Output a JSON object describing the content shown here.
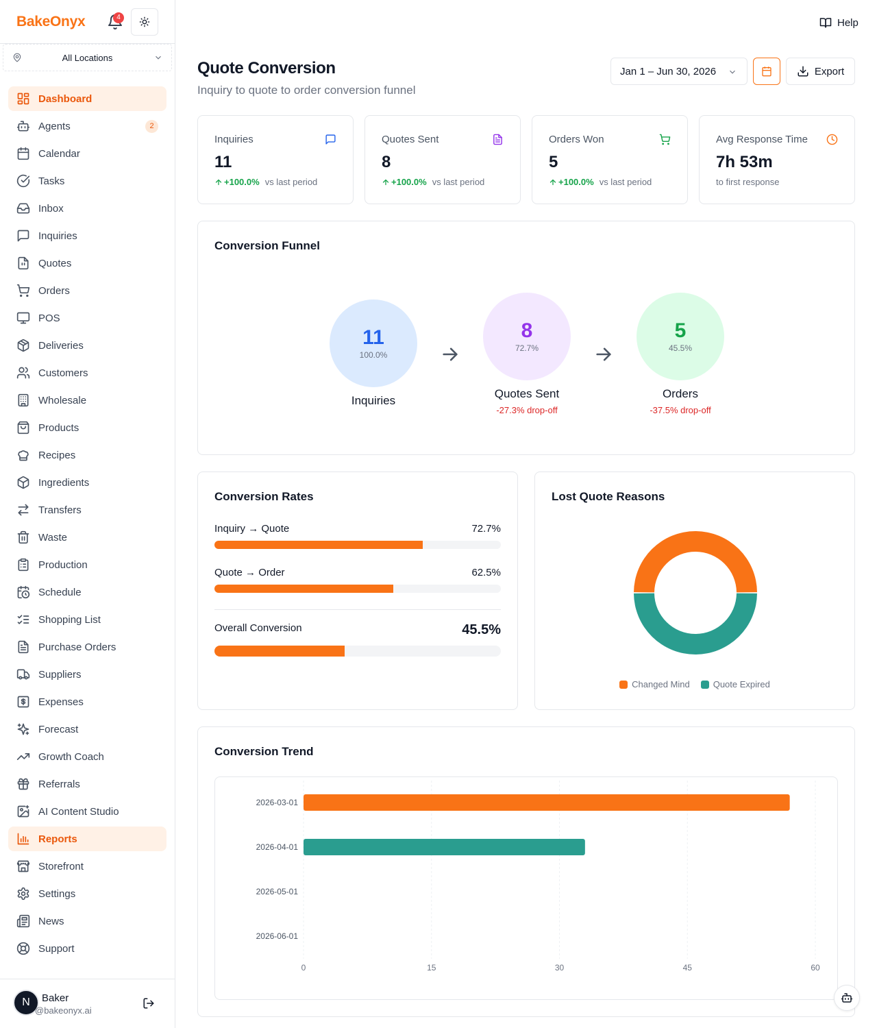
{
  "brand": {
    "name": "BakeOnyx",
    "notifications": "4"
  },
  "location": {
    "label": "All Locations"
  },
  "nav": [
    {
      "label": "Dashboard",
      "icon": "dashboard-icon",
      "active": true
    },
    {
      "label": "Agents",
      "icon": "bot-icon",
      "badge": "2"
    },
    {
      "label": "Calendar",
      "icon": "calendar-icon"
    },
    {
      "label": "Tasks",
      "icon": "check-circle-icon"
    },
    {
      "label": "Inbox",
      "icon": "inbox-icon"
    },
    {
      "label": "Inquiries",
      "icon": "chat-icon"
    },
    {
      "label": "Quotes",
      "icon": "file-quote-icon"
    },
    {
      "label": "Orders",
      "icon": "cart-icon"
    },
    {
      "label": "POS",
      "icon": "monitor-icon"
    },
    {
      "label": "Deliveries",
      "icon": "package-icon"
    },
    {
      "label": "Customers",
      "icon": "users-icon"
    },
    {
      "label": "Wholesale",
      "icon": "building-icon"
    },
    {
      "label": "Products",
      "icon": "shopping-bag-icon"
    },
    {
      "label": "Recipes",
      "icon": "chef-hat-icon"
    },
    {
      "label": "Ingredients",
      "icon": "box-icon"
    },
    {
      "label": "Transfers",
      "icon": "transfer-icon"
    },
    {
      "label": "Waste",
      "icon": "trash-icon"
    },
    {
      "label": "Production",
      "icon": "clipboard-icon"
    },
    {
      "label": "Schedule",
      "icon": "calendar-clock-icon"
    },
    {
      "label": "Shopping List",
      "icon": "list-checks-icon"
    },
    {
      "label": "Purchase Orders",
      "icon": "file-text-icon"
    },
    {
      "label": "Suppliers",
      "icon": "truck-icon"
    },
    {
      "label": "Expenses",
      "icon": "dollar-icon"
    },
    {
      "label": "Forecast",
      "icon": "sparkles-icon"
    },
    {
      "label": "Growth Coach",
      "icon": "trending-up-icon"
    },
    {
      "label": "Referrals",
      "icon": "gift-icon"
    },
    {
      "label": "AI Content Studio",
      "icon": "image-sparkle-icon"
    },
    {
      "label": "Reports",
      "icon": "bar-chart-icon",
      "active": true
    },
    {
      "label": "Storefront",
      "icon": "store-icon"
    },
    {
      "label": "Settings",
      "icon": "gear-icon"
    },
    {
      "label": "News",
      "icon": "newspaper-icon"
    },
    {
      "label": "Support",
      "icon": "life-buoy-icon"
    }
  ],
  "user": {
    "initial": "N",
    "name": "Baker",
    "email": "@bakeonyx.ai"
  },
  "header": {
    "help": "Help",
    "title": "Quote Conversion",
    "subtitle": "Inquiry to quote to order conversion funnel",
    "date_range": "Jan 1 – Jun 30, 2026",
    "export": "Export"
  },
  "kpis": [
    {
      "title": "Inquiries",
      "value": "11",
      "change": "+100.0%",
      "note": "vs last period",
      "icon": "chat-icon",
      "color": "#2563eb"
    },
    {
      "title": "Quotes Sent",
      "value": "8",
      "change": "+100.0%",
      "note": "vs last period",
      "icon": "file-text-icon",
      "color": "#9333ea"
    },
    {
      "title": "Orders Won",
      "value": "5",
      "change": "+100.0%",
      "note": "vs last period",
      "icon": "cart-icon",
      "color": "#16a34a"
    },
    {
      "title": "Avg Response Time",
      "value": "7h 53m",
      "change": "",
      "note": "to first response",
      "icon": "clock-icon",
      "color": "#f97316"
    }
  ],
  "funnel": {
    "title": "Conversion Funnel",
    "stages": [
      {
        "value": "11",
        "pct": "100.0%",
        "label": "Inquiries",
        "drop": "",
        "bg": "#dbeafe",
        "fg": "#2563eb"
      },
      {
        "value": "8",
        "pct": "72.7%",
        "label": "Quotes Sent",
        "drop": "-27.3% drop-off",
        "bg": "#f3e8ff",
        "fg": "#9333ea"
      },
      {
        "value": "5",
        "pct": "45.5%",
        "label": "Orders",
        "drop": "-37.5% drop-off",
        "bg": "#dcfce7",
        "fg": "#16a34a"
      }
    ]
  },
  "rates": {
    "title": "Conversion Rates",
    "items": [
      {
        "label": "Inquiry → Quote",
        "value": "72.7%",
        "fraction": 0.727
      },
      {
        "label": "Quote → Order",
        "value": "62.5%",
        "fraction": 0.625
      }
    ],
    "overall": {
      "label": "Overall Conversion",
      "value": "45.5%",
      "fraction": 0.455
    }
  },
  "lost": {
    "title": "Lost Quote Reasons",
    "chart_data": {
      "type": "pie",
      "labels": [
        "Changed Mind",
        "Quote Expired"
      ],
      "values": [
        1,
        1
      ],
      "colors": [
        "#f97316",
        "#2a9d8f"
      ],
      "legend": "bottom"
    }
  },
  "trend": {
    "title": "Conversion Trend",
    "chart_data": {
      "type": "bar",
      "orientation": "horizontal",
      "categories": [
        "2026-03-01",
        "2026-04-01",
        "2026-05-01",
        "2026-06-01"
      ],
      "values": [
        57,
        33,
        0,
        0
      ],
      "bar_colors": [
        "#f97316",
        "#2a9d8f",
        "#f97316",
        "#2a9d8f"
      ],
      "xlim": [
        0,
        60
      ],
      "xticks": [
        "0",
        "15",
        "30",
        "45",
        "60"
      ],
      "grid": true
    }
  }
}
